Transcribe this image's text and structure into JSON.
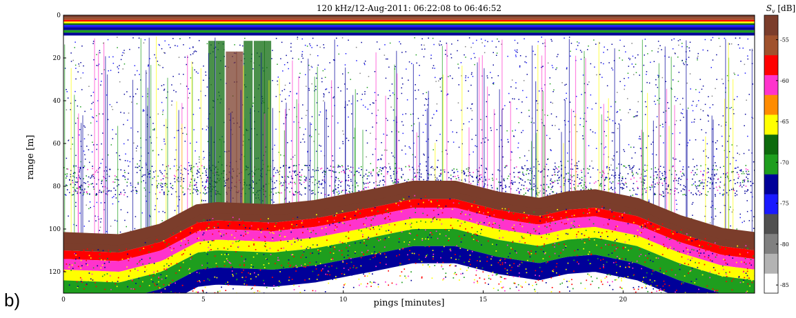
{
  "panel_label": "b)",
  "chart_data": {
    "type": "heatmap",
    "title": "120 kHz/12-Aug-2011: 06:22:08 to 06:46:52",
    "xlabel": "pings [minutes]",
    "ylabel": "range [m]",
    "xlim": [
      0,
      24.7
    ],
    "ylim": [
      0,
      130
    ],
    "y_reversed": true,
    "x_ticks": [
      "0",
      "5",
      "10",
      "15",
      "20"
    ],
    "x_tick_values": [
      0,
      5,
      10,
      15,
      20
    ],
    "y_ticks": [
      "0",
      "20",
      "40",
      "60",
      "80",
      "100",
      "120"
    ],
    "y_tick_values": [
      0,
      20,
      40,
      60,
      80,
      100,
      120
    ],
    "seabed_depth": {
      "x": [
        0,
        2,
        3.5,
        4.8,
        5.5,
        7.5,
        9,
        11,
        12.5,
        14,
        15.5,
        17,
        18,
        19,
        20.5,
        22,
        23.5,
        24.7
      ],
      "y": [
        104,
        105,
        100,
        91,
        90,
        91,
        89,
        84,
        80,
        80,
        85,
        88,
        85,
        84,
        88,
        96,
        102,
        104
      ]
    },
    "vertical_streaks_minutes": [
      5.3,
      5.6,
      6.0,
      6.3,
      6.6,
      7.0,
      7.3
    ],
    "colorbar": {
      "label": "S_v [dB]",
      "tick_labels": [
        "-55",
        "-60",
        "-65",
        "-70",
        "-75",
        "-80",
        "-85"
      ],
      "tick_values": [
        -55,
        -60,
        -65,
        -70,
        -75,
        -80,
        -85
      ],
      "range": [
        -86,
        -52
      ],
      "colors": [
        "#ffffff",
        "#b3b3b3",
        "#808080",
        "#505050",
        "#1a1aff",
        "#000099",
        "#1e9e1e",
        "#0d6b0d",
        "#ffff00",
        "#ff8c00",
        "#ff33cc",
        "#ff0000",
        "#a0522d",
        "#7b3d2b"
      ]
    }
  }
}
